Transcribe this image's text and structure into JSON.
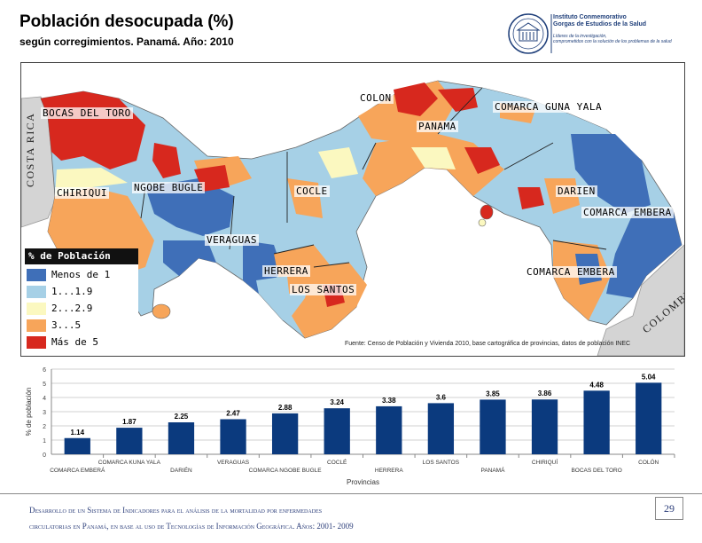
{
  "header": {
    "title": "Población desocupada (%)",
    "subtitle": "según corregimientos. Panamá. Año: 2010"
  },
  "logo": {
    "line1": "Instituto Conmemorativo",
    "line2": "Gorgas de Estudios de la Salud",
    "line3": "Líderes de la investigación,",
    "line4": "comprometidos con la solución de los problemas de la salud"
  },
  "map": {
    "neighbors": {
      "west": "COSTA RICA",
      "east": "COLOMBIA"
    },
    "labels": {
      "bocas": "BOCAS DEL TORO",
      "colon": "COLON",
      "guna": "COMARCA GUNA YALA",
      "panama": "PANAMA",
      "chiriqui": "CHIRIQUI",
      "ngobe": "NGOBE BUGLE",
      "cocle": "COCLE",
      "darien": "DARIEN",
      "embera1": "COMARCA EMBERA",
      "veraguas": "VERAGUAS",
      "herrera": "HERRERA",
      "lossantos": "LOS SANTOS",
      "embera2": "COMARCA EMBERA"
    },
    "legend": {
      "title": "% de Población",
      "items": [
        {
          "label": "Menos de 1",
          "color": "#3f6fb8"
        },
        {
          "label": "1...1.9",
          "color": "#a6d0e6"
        },
        {
          "label": "2...2.9",
          "color": "#fbf8c0"
        },
        {
          "label": "3...5",
          "color": "#f7a55a"
        },
        {
          "label": "Más de 5",
          "color": "#d7281e"
        }
      ]
    },
    "source": "Fuente: Censo de Población y Vivienda 2010, base cartográfica de provincias, datos de población INEC"
  },
  "chart_data": {
    "type": "bar",
    "categories": [
      "COMARCA EMBERÁ",
      "COMARCA KUNA YALA",
      "DARIÉN",
      "VERAGUAS",
      "COMARCA NGOBE BUGLE",
      "COCLÉ",
      "HERRERA",
      "LOS SANTOS",
      "PANAMÁ",
      "CHIRIQUÍ",
      "BOCAS DEL TORO",
      "COLÓN"
    ],
    "values": [
      1.14,
      1.87,
      2.25,
      2.47,
      2.88,
      3.24,
      3.38,
      3.6,
      3.85,
      3.86,
      4.48,
      5.04
    ],
    "value_labels": [
      "1.14",
      "1.87",
      "2.25",
      "2.47",
      "2.88",
      "3.24",
      "3.38",
      "3.6",
      "3.85",
      "3.86",
      "4.48",
      "5.04"
    ],
    "ylabel": "% de población",
    "xlabel": "Provincias",
    "ylim": [
      0,
      6
    ],
    "yticks": [
      "0",
      "1",
      "2",
      "3",
      "4",
      "5",
      "6"
    ],
    "grid": true,
    "bar_color": "#0b3a7e"
  },
  "footer": {
    "line1": "Desarrollo de un Sistema de Indicadores para el análisis de la mortalidad por enfermedades",
    "line2": "circulatorias en Panamá, en base al uso de Tecnologías de Información Geográfica. Años: 2001- 2009",
    "page": "29"
  }
}
